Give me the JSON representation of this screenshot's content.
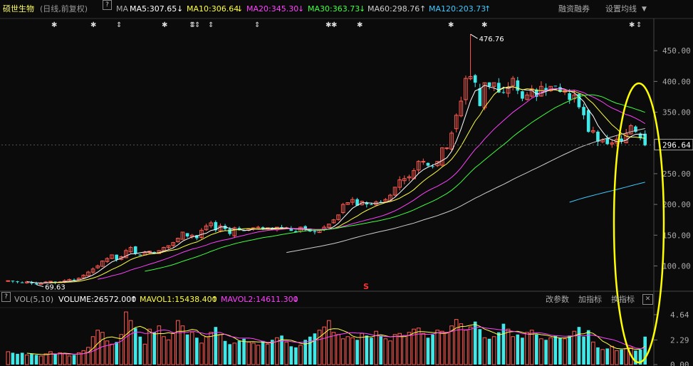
{
  "header": {
    "stock_name": "硕世生物",
    "period": "(日线,前复权)",
    "help": "?",
    "ma_label": "MA",
    "ma5": "MA5:307.65",
    "ma10": "MA10:306.64",
    "ma20": "MA20:345.30",
    "ma30": "MA30:363.73",
    "ma60": "MA60:298.76",
    "ma120": "MA120:203.73",
    "margin_btn": "融资融券",
    "settings_btn": "设置均线"
  },
  "colors": {
    "ma5": "#ffffff",
    "ma10": "#ffff40",
    "ma20": "#ff40ff",
    "ma30": "#40ff40",
    "ma60": "#cccccc",
    "ma120": "#40c8ff",
    "up": "#ff5a50",
    "down": "#40e8e8",
    "highlight": "#ffff00"
  },
  "volume_header": {
    "help": "?",
    "label": "VOL(5,10)",
    "volume": "VOLUME:26572.000",
    "mavol1": "MAVOL1:15438.400",
    "mavol2": "MAVOL2:14611.300",
    "change_params": "改参数",
    "add_indicator": "加指标",
    "switch_indicator": "换指标",
    "close": "✕"
  },
  "annotations": {
    "high": "476.76",
    "low": "69.63",
    "current_price": "296.64",
    "marker_s": "S"
  },
  "chart_data": {
    "type": "candlestick",
    "price_axis": {
      "ticks": [
        100,
        150,
        200,
        250,
        300,
        350,
        400,
        450
      ],
      "tick_labels": [
        "100.00",
        "150.00",
        "200.00",
        "250.00",
        "300.00",
        "350.00",
        "400.00",
        "450.00"
      ],
      "range": [
        60,
        500
      ]
    },
    "volume_axis": {
      "tick_labels": [
        "4.64",
        "2.29",
        "0.00"
      ],
      "ticks": [
        4.64,
        2.29,
        0
      ],
      "range": [
        0,
        5.3
      ]
    },
    "current_price": 296.64,
    "high": 476.76,
    "low": 69.63,
    "closes": [
      76,
      75,
      74,
      73,
      74,
      72,
      70,
      72,
      74,
      75,
      73,
      74,
      76,
      78,
      77,
      80,
      85,
      90,
      95,
      100,
      108,
      112,
      118,
      110,
      115,
      125,
      130,
      120,
      117,
      122,
      124,
      120,
      125,
      130,
      133,
      138,
      145,
      155,
      148,
      150,
      145,
      158,
      165,
      170,
      158,
      165,
      160,
      152,
      162,
      158,
      157,
      160,
      162,
      163,
      160,
      162,
      160,
      163,
      162,
      162,
      157,
      155,
      163,
      160,
      156,
      155,
      158,
      163,
      168,
      175,
      183,
      200,
      203,
      208,
      198,
      205,
      200,
      200,
      204,
      204,
      208,
      215,
      228,
      240,
      242,
      245,
      255,
      270,
      270,
      263,
      262,
      270,
      292,
      292,
      316,
      345,
      368,
      405,
      408,
      398,
      360,
      398,
      392,
      398,
      382,
      382,
      390,
      405,
      385,
      372,
      378,
      388,
      375,
      392,
      385,
      392,
      392,
      383,
      385,
      370,
      378,
      358,
      345,
      318,
      320,
      302,
      305,
      298,
      300,
      306,
      303,
      315,
      328,
      318,
      308,
      296
    ],
    "volumes": [
      1.2,
      1.1,
      1.0,
      1.1,
      0.9,
      1.0,
      0.9,
      0.8,
      1.0,
      1.2,
      1.0,
      1.1,
      1.0,
      0.8,
      0.9,
      1.1,
      1.3,
      1.6,
      2.6,
      3.2,
      3.0,
      2.2,
      1.9,
      2.1,
      2.8,
      4.9,
      4.1,
      3.4,
      2.6,
      1.9,
      3.3,
      3.0,
      3.6,
      2.6,
      2.3,
      2.9,
      4.1,
      3.6,
      2.8,
      3.0,
      2.5,
      2.0,
      2.6,
      3.0,
      3.5,
      2.8,
      2.2,
      1.9,
      2.0,
      2.2,
      2.4,
      2.1,
      2.0,
      1.8,
      2.2,
      1.9,
      2.3,
      2.5,
      2.7,
      2.1,
      1.7,
      1.6,
      1.8,
      2.3,
      2.6,
      2.9,
      3.2,
      3.5,
      4.1,
      3.0,
      2.8,
      2.4,
      2.6,
      2.5,
      2.3,
      2.9,
      2.7,
      2.5,
      3.1,
      2.7,
      2.4,
      2.2,
      2.8,
      2.9,
      2.7,
      3.0,
      3.3,
      3.4,
      2.9,
      2.5,
      2.8,
      3.2,
      3.1,
      3.0,
      3.6,
      4.2,
      3.8,
      3.2,
      3.5,
      4.0,
      3.3,
      2.5,
      2.4,
      2.6,
      3.0,
      3.8,
      3.3,
      2.6,
      2.8,
      2.5,
      3.0,
      3.2,
      2.8,
      2.4,
      2.3,
      2.5,
      2.7,
      2.5,
      2.4,
      2.7,
      3.1,
      3.5,
      2.6,
      3.2,
      2.1,
      1.6,
      1.4,
      1.5,
      1.7,
      1.3,
      1.4,
      1.5,
      1.6,
      1.3,
      1.4,
      2.6
    ],
    "ma5_last": 307.65,
    "ma10_last": 306.64,
    "ma20_last": 345.3,
    "ma30_last": 363.73,
    "ma60_last": 298.76,
    "ma120_last": 203.73
  }
}
